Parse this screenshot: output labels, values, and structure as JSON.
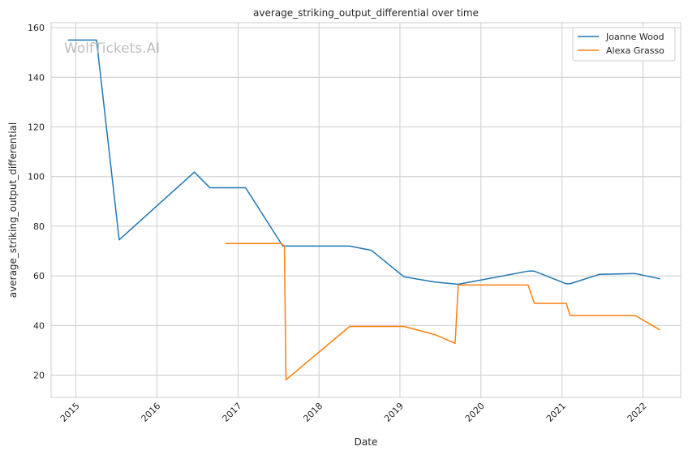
{
  "watermark": "WolfTickets.AI",
  "chart_data": {
    "type": "line",
    "title": "average_striking_output_differential over time",
    "xlabel": "Date",
    "ylabel": "average_striking_output_differential",
    "xlim": [
      "2014-09-11",
      "2022-06-20"
    ],
    "ylim": [
      11,
      162
    ],
    "x_ticks": [
      "2015-01-01",
      "2016-01-01",
      "2017-01-01",
      "2018-01-01",
      "2019-01-01",
      "2020-01-01",
      "2021-01-01",
      "2022-01-01"
    ],
    "x_tick_labels": [
      "2015",
      "2016",
      "2017",
      "2018",
      "2019",
      "2020",
      "2021",
      "2022"
    ],
    "y_ticks": [
      20,
      40,
      60,
      80,
      100,
      120,
      140,
      160
    ],
    "grid": true,
    "legend_position": "top-right",
    "series": [
      {
        "name": "Joanne Wood",
        "color": "#1f77b4",
        "points": [
          [
            "2014-11-26",
            155
          ],
          [
            "2015-04-04",
            155
          ],
          [
            "2015-07-15",
            74.5
          ],
          [
            "2016-06-18",
            101.8
          ],
          [
            "2016-08-27",
            95.5
          ],
          [
            "2017-02-04",
            95.5
          ],
          [
            "2017-07-22",
            72
          ],
          [
            "2018-05-19",
            72
          ],
          [
            "2018-08-25",
            70.3
          ],
          [
            "2019-01-19",
            59.6
          ],
          [
            "2019-06-08",
            57.5
          ],
          [
            "2019-09-21",
            56.6
          ],
          [
            "2020-08-01",
            61.9
          ],
          [
            "2020-08-29",
            61.9
          ],
          [
            "2021-01-20",
            56.8
          ],
          [
            "2021-02-06",
            56.8
          ],
          [
            "2021-06-19",
            60.6
          ],
          [
            "2021-11-27",
            60.9
          ],
          [
            "2022-03-19",
            58.8
          ]
        ]
      },
      {
        "name": "Alexa Grasso",
        "color": "#ff7f0e",
        "points": [
          [
            "2016-11-05",
            73
          ],
          [
            "2017-07-15",
            73
          ],
          [
            "2017-07-29",
            72
          ],
          [
            "2017-08-05",
            18.1
          ],
          [
            "2018-05-19",
            39.6
          ],
          [
            "2019-01-19",
            39.6
          ],
          [
            "2019-06-08",
            36.3
          ],
          [
            "2019-09-07",
            32.8
          ],
          [
            "2019-09-21",
            56.3
          ],
          [
            "2020-08-01",
            56.3
          ],
          [
            "2020-08-29",
            48.9
          ],
          [
            "2021-01-20",
            48.9
          ],
          [
            "2021-02-06",
            44
          ],
          [
            "2021-11-27",
            44
          ],
          [
            "2022-03-19",
            38.2
          ]
        ]
      }
    ]
  }
}
